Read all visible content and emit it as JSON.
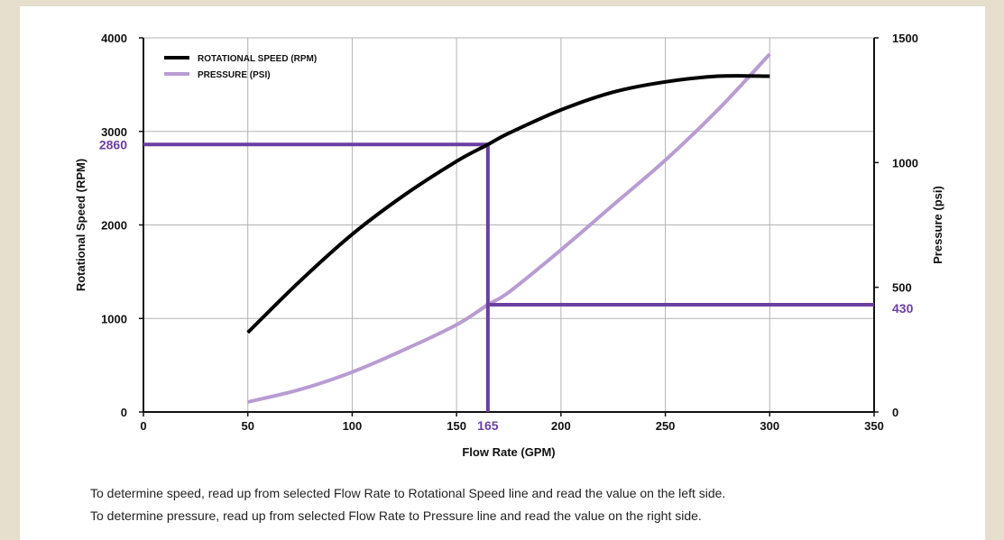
{
  "chart_data": {
    "type": "line",
    "xlabel": "Flow Rate (GPM)",
    "ylabel": "Rotational Speed (RPM)",
    "y2label": "Pressure (psi)",
    "xlim": [
      0,
      350
    ],
    "ylim": [
      0,
      4000
    ],
    "y2lim": [
      0,
      1500
    ],
    "x_ticks": [
      "0",
      "50",
      "100",
      "150",
      "200",
      "250",
      "300",
      "350"
    ],
    "y_ticks": [
      "0",
      "1000",
      "2000",
      "3000",
      "4000"
    ],
    "y2_ticks": [
      "0",
      "500",
      "1000",
      "1500"
    ],
    "grid": true,
    "legend_position": "top-left",
    "series": [
      {
        "name": "ROTATIONAL SPEED (RPM)",
        "axis": "left",
        "color": "#000000",
        "x": [
          50,
          75,
          100,
          125,
          150,
          165,
          175,
          200,
          225,
          250,
          275,
          300
        ],
        "y": [
          850,
          1400,
          1900,
          2320,
          2680,
          2860,
          2980,
          3230,
          3420,
          3530,
          3590,
          3590
        ]
      },
      {
        "name": "PRESSURE (PSI)",
        "axis": "right",
        "color": "#b89cd2",
        "x": [
          50,
          75,
          100,
          125,
          150,
          165,
          175,
          200,
          225,
          250,
          275,
          300
        ],
        "y": [
          40,
          90,
          160,
          250,
          350,
          430,
          480,
          650,
          830,
          1010,
          1210,
          1435
        ]
      }
    ],
    "markers": {
      "color": "#6b3fa0",
      "flow": 165,
      "flow_label": "165",
      "speed": 2860,
      "speed_label": "2860",
      "pressure": 430,
      "pressure_label": "430"
    }
  },
  "notes": {
    "line1": "To determine speed, read up from selected Flow Rate to Rotational Speed line and read the value on the left side.",
    "line2": "To determine pressure, read up from selected Flow Rate to Pressure line and read the value on the right side."
  }
}
